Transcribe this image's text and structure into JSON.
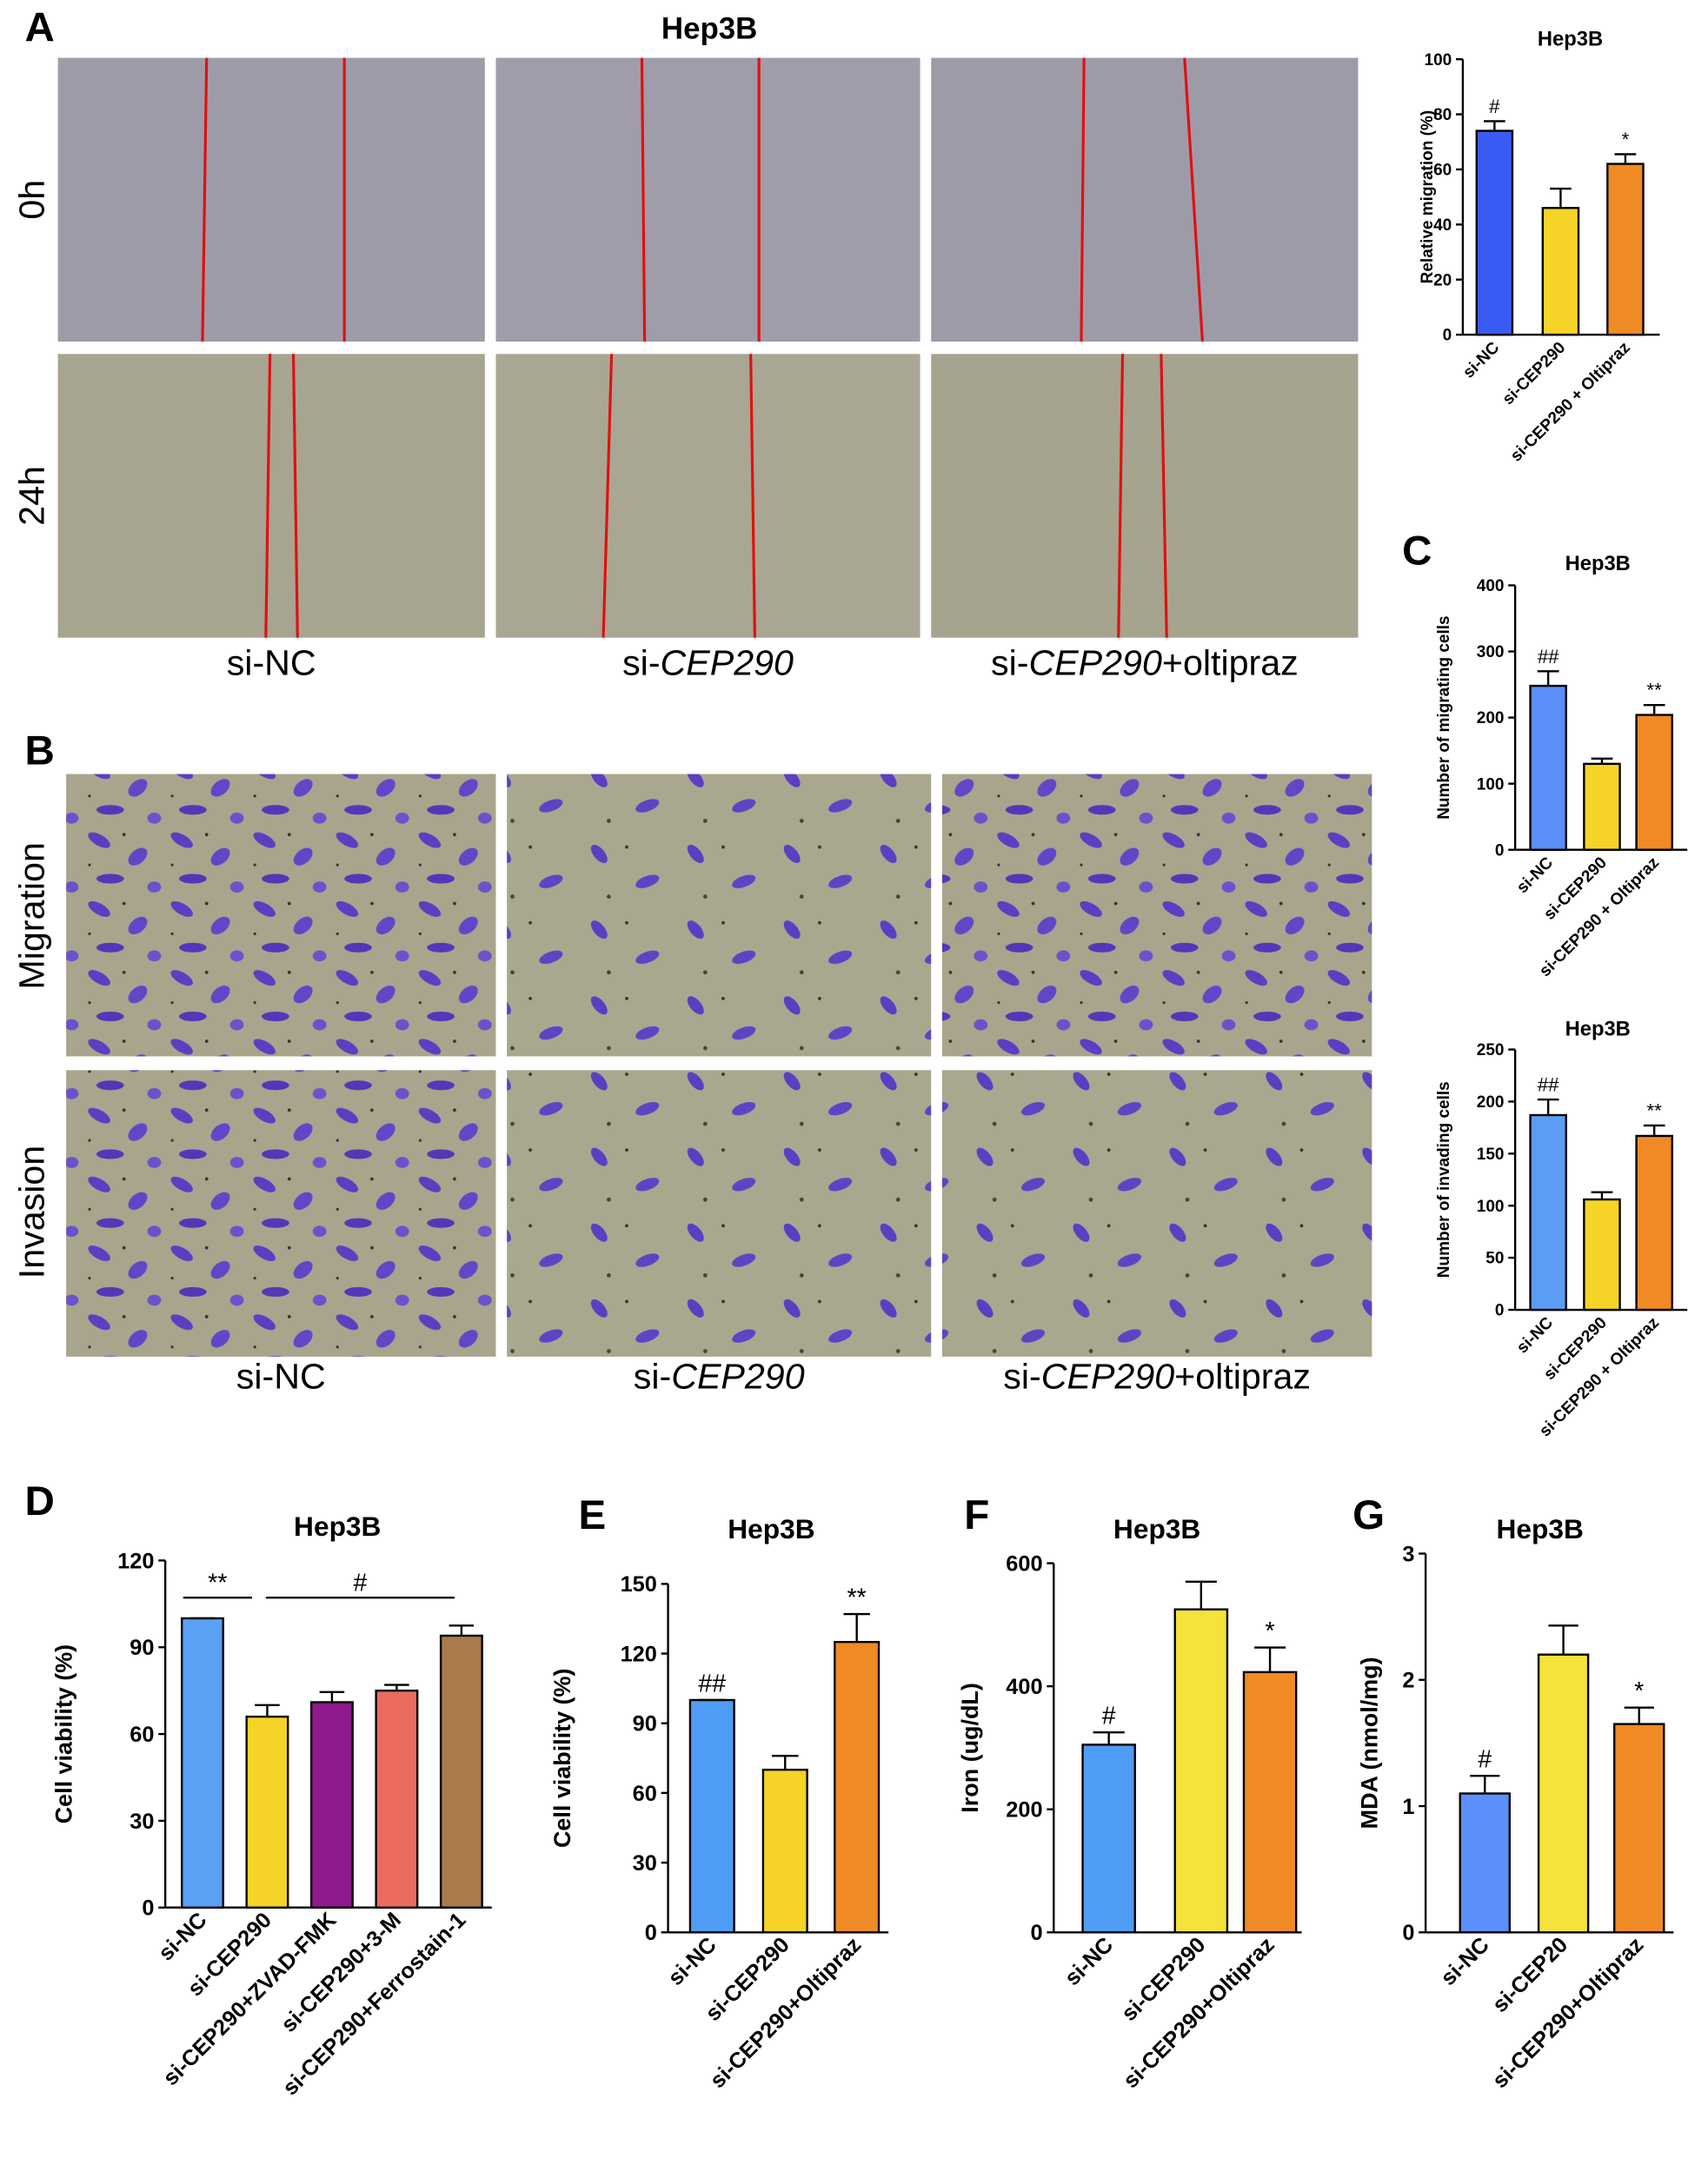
{
  "figure": {
    "panel_labels": [
      "A",
      "B",
      "C",
      "D",
      "E",
      "F",
      "G"
    ],
    "wound_title": "Hep3B",
    "row_labels": [
      "0h",
      "24h",
      "Migration",
      "Invasion"
    ],
    "captions": [
      [
        "si-NC"
      ],
      [
        "si-",
        "CEP290"
      ],
      [
        "si-",
        "CEP290",
        "+oltipraz"
      ]
    ]
  },
  "chart_data": [
    {
      "type": "bar",
      "title": "Hep3B",
      "ylabel": "Relative migration (%)",
      "categories": [
        "si-NC",
        "si-CEP290",
        "si-CEP290 + Oltipraz"
      ],
      "values": [
        74,
        46,
        62
      ],
      "errors": [
        3.5,
        7,
        3.5
      ],
      "annotations": [
        "#",
        null,
        "*"
      ],
      "colors": [
        "#3a5cf5",
        "#f5d327",
        "#f08a24"
      ],
      "ylim": [
        0,
        100
      ],
      "yticks": [
        0,
        20,
        40,
        60,
        80,
        100
      ]
    },
    {
      "type": "bar",
      "title": "Hep3B",
      "ylabel": "Number of migrating cells",
      "categories": [
        "si-NC",
        "si-CEP290",
        "si-CEP290 + Oltipraz"
      ],
      "values": [
        248,
        130,
        204
      ],
      "errors": [
        22,
        8,
        15
      ],
      "annotations": [
        "##",
        null,
        "**"
      ],
      "colors": [
        "#5b8ff9",
        "#f5d327",
        "#f08a24"
      ],
      "ylim": [
        0,
        400
      ],
      "yticks": [
        0,
        100,
        200,
        300,
        400
      ]
    },
    {
      "type": "bar",
      "title": "Hep3B",
      "ylabel": "Number of invading cells",
      "categories": [
        "si-NC",
        "si-CEP290",
        "si-CEP290 + Oltipraz"
      ],
      "values": [
        187,
        106,
        167
      ],
      "errors": [
        15,
        7,
        10
      ],
      "annotations": [
        "##",
        null,
        "**"
      ],
      "colors": [
        "#5b9cf5",
        "#f5d327",
        "#f08a24"
      ],
      "ylim": [
        0,
        250
      ],
      "yticks": [
        0,
        50,
        100,
        150,
        200,
        250
      ]
    },
    {
      "type": "bar",
      "title": "Hep3B",
      "ylabel": "Cell viability (%)",
      "categories": [
        "si-NC",
        "si-CEP290",
        "si-CEP290+ZVAD-FMK",
        "si-CEP290+3-M",
        "si-CEP290+Ferrostain-1"
      ],
      "values": [
        100,
        66,
        71,
        75,
        94
      ],
      "errors": [
        0,
        4,
        3.5,
        2,
        3.5
      ],
      "annotations": [
        null,
        null,
        null,
        null,
        null
      ],
      "comparisons": [
        "**",
        "#"
      ],
      "colors": [
        "#5aa0f5",
        "#f5d327",
        "#8e1a8e",
        "#ea6a5e",
        "#a97a4c"
      ],
      "ylim": [
        0,
        120
      ],
      "yticks": [
        0,
        30,
        60,
        90,
        120
      ]
    },
    {
      "type": "bar",
      "title": "Hep3B",
      "ylabel": "Cell viability (%)",
      "categories": [
        "si-NC",
        "si-CEP290",
        "si-CEP290+Oltipraz"
      ],
      "values": [
        100,
        70,
        125
      ],
      "errors": [
        0,
        6,
        12
      ],
      "annotations": [
        "##",
        null,
        "**"
      ],
      "colors": [
        "#4f9cf7",
        "#f5d327",
        "#f08a24"
      ],
      "ylim": [
        0,
        150
      ],
      "yticks": [
        0,
        30,
        60,
        90,
        120,
        150
      ]
    },
    {
      "type": "bar",
      "title": "Hep3B",
      "ylabel": "Iron (ug/dL)",
      "categories": [
        "si-NC",
        "si-CEP290",
        "si-CEP290+Oltipraz"
      ],
      "values": [
        305,
        525,
        423
      ],
      "errors": [
        20,
        45,
        40
      ],
      "annotations": [
        "#",
        null,
        "*"
      ],
      "colors": [
        "#4f9cf7",
        "#f5e23a",
        "#f08a24"
      ],
      "ylim": [
        0,
        600
      ],
      "yticks": [
        0,
        200,
        400,
        600
      ]
    },
    {
      "type": "bar",
      "title": "Hep3B",
      "ylabel": "MDA (nmol/mg)",
      "categories": [
        "si-NC",
        "si-CEP20",
        "si-CEP290+Oltipraz"
      ],
      "values": [
        1.1,
        2.2,
        1.65
      ],
      "errors": [
        0.14,
        0.23,
        0.13
      ],
      "annotations": [
        "#",
        null,
        "*"
      ],
      "colors": [
        "#5b8ff9",
        "#f5e23a",
        "#f08a24"
      ],
      "ylim": [
        0,
        3
      ],
      "yticks": [
        0,
        1,
        2,
        3
      ]
    }
  ]
}
